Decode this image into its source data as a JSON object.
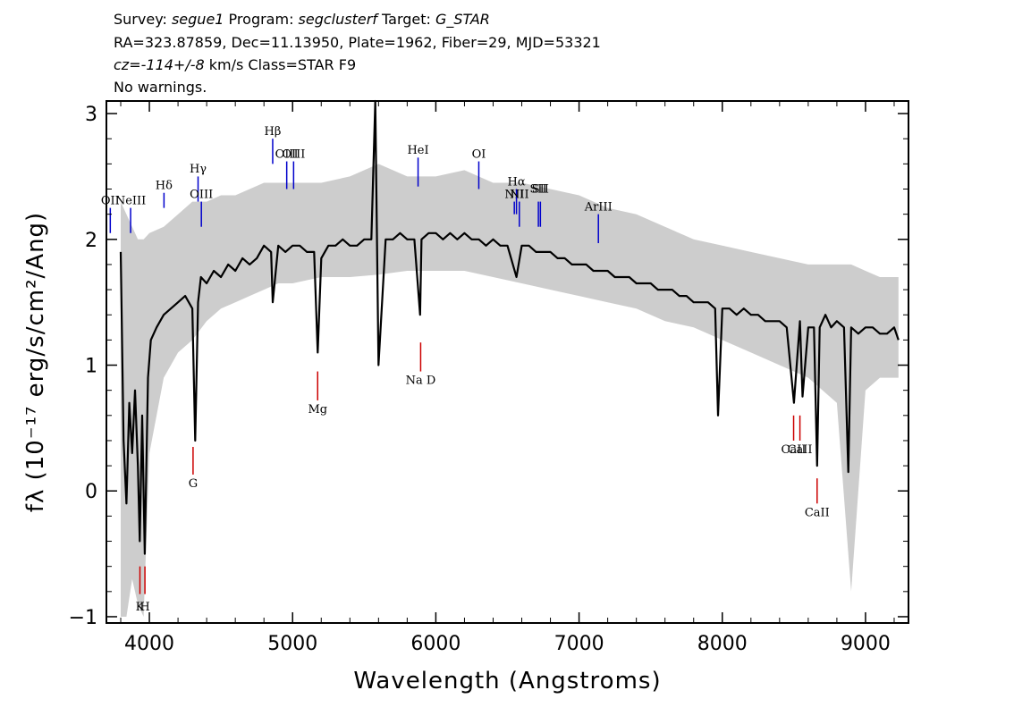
{
  "header": {
    "line1": [
      {
        "t": "Survey: ",
        "i": false
      },
      {
        "t": "segue1",
        "i": true
      },
      {
        "t": " Program: ",
        "i": false
      },
      {
        "t": "segclusterf",
        "i": true
      },
      {
        "t": " Target: ",
        "i": false
      },
      {
        "t": "G_STAR",
        "i": true
      }
    ],
    "line2": "RA=323.87859, Dec=11.13950, Plate=1962, Fiber=29, MJD=53321",
    "line3": [
      {
        "t": "cz=",
        "i": true
      },
      {
        "t": "-114+/-8",
        "i": true
      },
      {
        "t": " km/s Class=STAR F9",
        "i": false
      }
    ],
    "line4": "No warnings."
  },
  "chart_data": {
    "type": "line",
    "xlabel": "Wavelength (Angstroms)",
    "ylabel": "fλ (10⁻¹⁷ erg/s/cm²/Ang)",
    "xlim": [
      3700,
      9300
    ],
    "ylim": [
      -1.05,
      3.1
    ],
    "xticks": [
      4000,
      5000,
      6000,
      7000,
      8000,
      9000
    ],
    "yticks": [
      -1,
      0,
      1,
      2,
      3
    ],
    "xtick_labels": [
      "4000",
      "5000",
      "6000",
      "7000",
      "8000",
      "9000"
    ],
    "ytick_labels": [
      "−1",
      "0",
      "1",
      "2",
      "3"
    ],
    "grid": false,
    "series": [
      {
        "color": "#000000",
        "x": [
          3800,
          3820,
          3840,
          3860,
          3880,
          3900,
          3920,
          3933,
          3950,
          3968,
          3990,
          4010,
          4050,
          4100,
          4150,
          4200,
          4250,
          4300,
          4320,
          4340,
          4360,
          4400,
          4450,
          4500,
          4550,
          4600,
          4650,
          4700,
          4750,
          4800,
          4850,
          4861,
          4900,
          4950,
          5000,
          5050,
          5100,
          5150,
          5175,
          5200,
          5250,
          5300,
          5350,
          5400,
          5450,
          5500,
          5550,
          5577,
          5600,
          5650,
          5700,
          5750,
          5800,
          5850,
          5890,
          5900,
          5950,
          6000,
          6050,
          6100,
          6150,
          6200,
          6250,
          6300,
          6350,
          6400,
          6450,
          6500,
          6563,
          6600,
          6650,
          6700,
          6750,
          6800,
          6850,
          6900,
          6950,
          7000,
          7050,
          7100,
          7150,
          7200,
          7250,
          7300,
          7350,
          7400,
          7450,
          7500,
          7550,
          7600,
          7650,
          7700,
          7750,
          7800,
          7850,
          7900,
          7950,
          7970,
          8000,
          8050,
          8100,
          8150,
          8200,
          8250,
          8300,
          8350,
          8400,
          8450,
          8500,
          8542,
          8560,
          8600,
          8640,
          8662,
          8680,
          8720,
          8760,
          8800,
          8850,
          8880,
          8900,
          8950,
          9000,
          9050,
          9100,
          9150,
          9200,
          9230
        ],
        "y": [
          1.9,
          0.4,
          -0.1,
          0.7,
          0.3,
          0.8,
          0.2,
          -0.4,
          0.6,
          -0.5,
          0.9,
          1.2,
          1.3,
          1.4,
          1.45,
          1.5,
          1.55,
          1.45,
          0.4,
          1.5,
          1.7,
          1.65,
          1.75,
          1.7,
          1.8,
          1.75,
          1.85,
          1.8,
          1.85,
          1.95,
          1.9,
          1.5,
          1.95,
          1.9,
          1.95,
          1.95,
          1.9,
          1.9,
          1.1,
          1.85,
          1.95,
          1.95,
          2.0,
          1.95,
          1.95,
          2.0,
          2.0,
          3.1,
          1.0,
          2.0,
          2.0,
          2.05,
          2.0,
          2.0,
          1.4,
          2.0,
          2.05,
          2.05,
          2.0,
          2.05,
          2.0,
          2.05,
          2.0,
          2.0,
          1.95,
          2.0,
          1.95,
          1.95,
          1.7,
          1.95,
          1.95,
          1.9,
          1.9,
          1.9,
          1.85,
          1.85,
          1.8,
          1.8,
          1.8,
          1.75,
          1.75,
          1.75,
          1.7,
          1.7,
          1.7,
          1.65,
          1.65,
          1.65,
          1.6,
          1.6,
          1.6,
          1.55,
          1.55,
          1.5,
          1.5,
          1.5,
          1.45,
          0.6,
          1.45,
          1.45,
          1.4,
          1.45,
          1.4,
          1.4,
          1.35,
          1.35,
          1.35,
          1.3,
          0.7,
          1.35,
          0.75,
          1.3,
          1.3,
          0.2,
          1.3,
          1.4,
          1.3,
          1.35,
          1.3,
          0.15,
          1.3,
          1.25,
          1.3,
          1.3,
          1.25,
          1.25,
          1.3,
          1.2
        ]
      }
    ],
    "error_band": {
      "color": "#c8c8c8",
      "x": [
        3800,
        3840,
        3880,
        3920,
        3960,
        4000,
        4100,
        4200,
        4300,
        4400,
        4500,
        4600,
        4700,
        4800,
        4900,
        5000,
        5200,
        5400,
        5600,
        5800,
        6000,
        6200,
        6400,
        6600,
        6800,
        7000,
        7200,
        7400,
        7600,
        7800,
        8000,
        8200,
        8400,
        8600,
        8800,
        8900,
        9000,
        9100,
        9230
      ],
      "lower": [
        -1.0,
        -1.0,
        -0.7,
        -0.9,
        -1.0,
        0.3,
        0.9,
        1.1,
        1.2,
        1.35,
        1.45,
        1.5,
        1.55,
        1.6,
        1.65,
        1.65,
        1.7,
        1.7,
        1.72,
        1.75,
        1.75,
        1.75,
        1.7,
        1.65,
        1.6,
        1.55,
        1.5,
        1.45,
        1.35,
        1.3,
        1.2,
        1.1,
        1.0,
        0.9,
        0.7,
        -0.8,
        0.8,
        0.9,
        0.9
      ],
      "upper": [
        2.3,
        2.2,
        2.1,
        2.0,
        2.0,
        2.05,
        2.1,
        2.2,
        2.3,
        2.3,
        2.35,
        2.35,
        2.4,
        2.45,
        2.45,
        2.45,
        2.45,
        2.5,
        2.6,
        2.5,
        2.5,
        2.55,
        2.45,
        2.45,
        2.4,
        2.35,
        2.25,
        2.2,
        2.1,
        2.0,
        1.95,
        1.9,
        1.85,
        1.8,
        1.8,
        1.8,
        1.75,
        1.7,
        1.7
      ]
    },
    "emission_lines": [
      {
        "label": "OII",
        "x": 3727,
        "y_top": 2.25,
        "y_bot": 2.05,
        "label_y": 2.28
      },
      {
        "label": "NeIII",
        "x": 3869,
        "y_top": 2.25,
        "y_bot": 2.05,
        "label_y": 2.28
      },
      {
        "label": "Hδ",
        "x": 4102,
        "y_top": 2.37,
        "y_bot": 2.25,
        "label_y": 2.4
      },
      {
        "label": "Hγ",
        "x": 4340,
        "y_top": 2.5,
        "y_bot": 2.3,
        "label_y": 2.53
      },
      {
        "label": "OIII",
        "x": 4363,
        "y_top": 2.3,
        "y_bot": 2.1,
        "label_y": 2.33
      },
      {
        "label": "Hβ",
        "x": 4861,
        "y_top": 2.8,
        "y_bot": 2.6,
        "label_y": 2.83
      },
      {
        "label": "OIII",
        "x": 4959,
        "y_top": 2.62,
        "y_bot": 2.4,
        "label_y": 2.65
      },
      {
        "label": "OIII",
        "x": 5007,
        "y_top": 2.62,
        "y_bot": 2.4,
        "label_y": 2.65
      },
      {
        "label": "HeI",
        "x": 5876,
        "y_top": 2.65,
        "y_bot": 2.42,
        "label_y": 2.68
      },
      {
        "label": "OI",
        "x": 6300,
        "y_top": 2.62,
        "y_bot": 2.4,
        "label_y": 2.65
      },
      {
        "label": "NII",
        "x": 6548,
        "y_top": 2.3,
        "y_bot": 2.2,
        "label_y": 2.33
      },
      {
        "label": "Hα",
        "x": 6563,
        "y_top": 2.4,
        "y_bot": 2.2,
        "label_y": 2.43
      },
      {
        "label": "NII",
        "x": 6583,
        "y_top": 2.3,
        "y_bot": 2.1,
        "label_y": 2.33
      },
      {
        "label": "SII",
        "x": 6716,
        "y_top": 2.3,
        "y_bot": 2.1,
        "label_y": 2.37
      },
      {
        "label": "SII",
        "x": 6730,
        "y_top": 2.3,
        "y_bot": 2.1,
        "label_y": 2.37
      },
      {
        "label": "ArIII",
        "x": 7135,
        "y_top": 2.2,
        "y_bot": 1.97,
        "label_y": 2.23
      }
    ],
    "absorption_lines": [
      {
        "label": "K",
        "x": 3934,
        "y_top": -0.6,
        "y_bot": -0.82,
        "label_y": -0.95
      },
      {
        "label": "H",
        "x": 3969,
        "y_top": -0.6,
        "y_bot": -0.82,
        "label_y": -0.95
      },
      {
        "label": "G",
        "x": 4305,
        "y_top": 0.35,
        "y_bot": 0.13,
        "label_y": 0.03
      },
      {
        "label": "Mg",
        "x": 5175,
        "y_top": 0.95,
        "y_bot": 0.72,
        "label_y": 0.62
      },
      {
        "label": "Na D",
        "x": 5894,
        "y_top": 1.18,
        "y_bot": 0.95,
        "label_y": 0.85
      },
      {
        "label": "CaII",
        "x": 8498,
        "y_top": 0.6,
        "y_bot": 0.4,
        "label_y": 0.3
      },
      {
        "label": "CaII",
        "x": 8542,
        "y_top": 0.6,
        "y_bot": 0.4,
        "label_y": 0.3
      },
      {
        "label": "CaII",
        "x": 8662,
        "y_top": 0.1,
        "y_bot": -0.1,
        "label_y": -0.2
      }
    ],
    "colors": {
      "emission": "#0000cc",
      "absorption": "#cc0000",
      "flux": "#000000",
      "error": "#c8c8c8"
    }
  }
}
